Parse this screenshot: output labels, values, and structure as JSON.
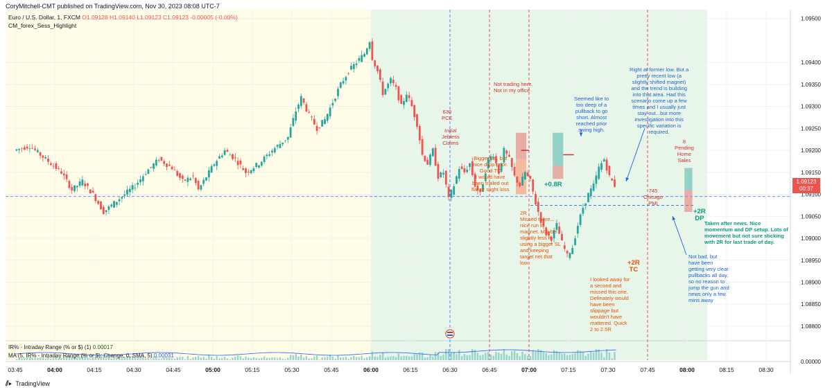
{
  "header": {
    "publisher": "CoryMitchell-CMT published on TradingView.com, Nov 30, 2023 08:08 UTC-7"
  },
  "legend": {
    "symbol": "Euro / U.S. Dollar, 1, FXCM",
    "ohlc": "O1.09128 H1.09140 L1.09123 C1.09123 -0.00005 (-0.00%)",
    "study": "CM_forex_Sess_Highlight"
  },
  "indicators": {
    "ir_label": "IR% - Intraday Range (% or $) (1)",
    "ir_value": "0.00017",
    "ma_label": "MA (5, IR% - Intraday Range (% or $): Change, 0, SMA, 5)",
    "ma_value": "0.00031"
  },
  "price_badge": {
    "price": "1.09123",
    "countdown": "00:37"
  },
  "footer": {
    "brand": "TradingView",
    "logo": "tv-logo-icon"
  },
  "colors": {
    "up": "#26a69a",
    "down": "#ef5350",
    "session_pre": "#fffde7",
    "session_main": "#e8f5e9",
    "accent": "#2962ff"
  },
  "annotations": [
    {
      "id": "a630",
      "text": "630\nPCE",
      "cls": "red"
    },
    {
      "id": "ajob",
      "text": "Initial\nJebless\nClaims",
      "cls": "red"
    },
    {
      "id": "anot",
      "text": "Not trading here.\nNot in my office",
      "cls": "red"
    },
    {
      "id": "abig",
      "text": "Bigger SL, but\nnice drop prior.\nGood TC\nI would have\nbeen trailed out\nflat or slight loss",
      "cls": "org"
    },
    {
      "id": "a2r",
      "text": "2R\nMissed there...\nnice run to\nmagnet. Maybe\nslightly less if\nusing a bigger SL\nand keeping\ntarget net that\nlow",
      "cls": "org"
    },
    {
      "id": "a08",
      "text": "+0.8R",
      "cls": "grn"
    },
    {
      "id": "aseem",
      "text": "Seemed like to\ntoo deep of a\npullback to go\nshort. Almost\nreached prior\nswing high.",
      "cls": "blu"
    },
    {
      "id": "aright",
      "text": "Right at former low. But a\npretty recent low (a\nslightly shifted magnet)\nand the trend is building\ninto that area. Had this\nscenario come up a few\ntimes and I usually just\nstay out...but more\ninvestigation into this\nspecific variation is\nrequired.",
      "cls": "blu"
    },
    {
      "id": "a8",
      "text": "8\nPending\nHome\nSales",
      "cls": "red"
    },
    {
      "id": "a745",
      "text": "745\nChicago\nPMI",
      "cls": "red"
    },
    {
      "id": "a2rdp",
      "text": "+2R\nDP",
      "cls": "grn"
    },
    {
      "id": "ataken",
      "text": "Taken after news. Nice\nmomentum and DP setup. Lots of\nmovement but not sure sticking\nwith 2R for last trade of day.",
      "cls": "grn"
    },
    {
      "id": "a2rtc",
      "text": "+2R\nTC",
      "cls": "org"
    },
    {
      "id": "alook",
      "text": "I looked away for\na second and\nmissed this one.\nDefinately would\nhave been\nslippage but\nwouldn't have\nmattered. Quick\n2 to 2.5R",
      "cls": "org"
    },
    {
      "id": "anotbad",
      "text": "Not bad, but\nhave been\ngetting very clear\npullbacks all day,\nso no reason to\njump the gun and\nnews only a few\nmins away",
      "cls": "blu"
    }
  ],
  "chart_data": {
    "type": "candlestick",
    "symbol": "EUR/USD",
    "timeframe": "1",
    "y_ticks": [
      "1.09500",
      "1.09400",
      "1.09350",
      "1.09300",
      "1.09250",
      "1.09200",
      "1.09150",
      "1.09100",
      "1.09050",
      "1.09000",
      "1.08950",
      "1.08900",
      "1.08850",
      "1.08800"
    ],
    "ylim": [
      1.0877,
      1.0952
    ],
    "x_ticks": [
      "03:45",
      "04:00",
      "04:15",
      "04:30",
      "04:45",
      "05:00",
      "05:15",
      "05:30",
      "05:45",
      "06:00",
      "06:15",
      "06:30",
      "06:45",
      "07:00",
      "07:15",
      "07:30",
      "07:45",
      "08:00",
      "08:15",
      "08:30"
    ],
    "volume_axis_label": "0.00000",
    "horizontal_levels": [
      1.09095,
      1.09075
    ],
    "event_times": [
      "06:30",
      "06:45",
      "07:00",
      "07:45"
    ],
    "path": [
      [
        0,
        1.092
      ],
      [
        6,
        1.0921
      ],
      [
        12,
        1.0918
      ],
      [
        18,
        1.0915
      ],
      [
        22,
        1.0911
      ],
      [
        26,
        1.0913
      ],
      [
        30,
        1.091
      ],
      [
        34,
        1.0906
      ],
      [
        40,
        1.0909
      ],
      [
        46,
        1.0912
      ],
      [
        50,
        1.0915
      ],
      [
        55,
        1.0918
      ],
      [
        60,
        1.0916
      ],
      [
        64,
        1.0913
      ],
      [
        68,
        1.0914
      ],
      [
        70,
        1.0911
      ],
      [
        72,
        1.0913
      ],
      [
        76,
        1.0917
      ],
      [
        80,
        1.092
      ],
      [
        84,
        1.0918
      ],
      [
        88,
        1.0915
      ],
      [
        93,
        1.0917
      ],
      [
        98,
        1.092
      ],
      [
        104,
        1.0923
      ],
      [
        107,
        1.0929
      ],
      [
        109,
        1.0932
      ],
      [
        112,
        1.0928
      ],
      [
        115,
        1.0925
      ],
      [
        118,
        1.0927
      ],
      [
        121,
        1.0931
      ],
      [
        124,
        1.0935
      ],
      [
        127,
        1.0938
      ],
      [
        130,
        1.094
      ],
      [
        133,
        1.0942
      ],
      [
        135,
        1.0945
      ],
      [
        136,
        1.0941
      ],
      [
        138,
        1.0938
      ],
      [
        140,
        1.0933
      ],
      [
        143,
        1.0936
      ],
      [
        145,
        1.0934
      ],
      [
        147,
        1.093
      ],
      [
        149,
        1.0933
      ],
      [
        151,
        1.093
      ],
      [
        153,
        1.0926
      ],
      [
        155,
        1.0919
      ],
      [
        157,
        1.0917
      ],
      [
        159,
        1.092
      ],
      [
        161,
        1.0914
      ],
      [
        163,
        1.0915
      ],
      [
        165,
        1.0909
      ],
      [
        167,
        1.0912
      ],
      [
        169,
        1.0916
      ],
      [
        171,
        1.0915
      ],
      [
        173,
        1.0917
      ],
      [
        175,
        1.0912
      ],
      [
        177,
        1.091
      ],
      [
        180,
        1.0918
      ],
      [
        182,
        1.0919
      ],
      [
        184,
        1.0915
      ],
      [
        186,
        1.092
      ],
      [
        188,
        1.0918
      ],
      [
        190,
        1.0914
      ],
      [
        192,
        1.0912
      ],
      [
        194,
        1.0915
      ],
      [
        196,
        1.0913
      ],
      [
        198,
        1.0908
      ],
      [
        200,
        1.0904
      ],
      [
        202,
        1.0901
      ],
      [
        204,
        1.09
      ],
      [
        206,
        1.0903
      ],
      [
        208,
        1.0899
      ],
      [
        210,
        1.0896
      ],
      [
        212,
        1.0898
      ],
      [
        214,
        1.0903
      ],
      [
        216,
        1.0907
      ],
      [
        218,
        1.091
      ],
      [
        220,
        1.0912
      ],
      [
        222,
        1.0916
      ],
      [
        224,
        1.0918
      ],
      [
        226,
        1.0914
      ],
      [
        228,
        1.0912
      ]
    ]
  }
}
